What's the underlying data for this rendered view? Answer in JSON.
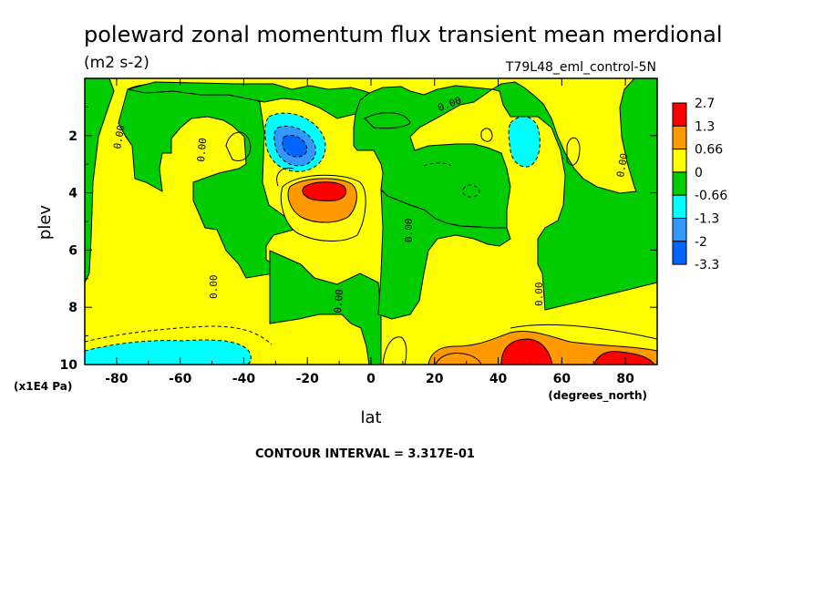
{
  "chart_data": {
    "type": "heatmap",
    "title": "poleward zonal momentum flux transient mean merdional",
    "units": "(m2 s-2)",
    "subtitle": "T79L48_eml_control-5N",
    "xlabel": "lat",
    "xunits": "(degrees_north)",
    "ylabel": "plev",
    "yunits": "(x1E4 Pa)",
    "xlim": [
      -90,
      90
    ],
    "ylim": [
      10,
      0
    ],
    "xticks": [
      "-80",
      "-60",
      "-40",
      "-20",
      "0",
      "20",
      "40",
      "60",
      "80"
    ],
    "yticks": [
      "2",
      "4",
      "6",
      "8",
      "10"
    ],
    "colorbar": {
      "labels": [
        "2.7",
        "1.3",
        "0.66",
        "0",
        "-0.66",
        "-1.3",
        "-2",
        "-3.3"
      ],
      "colors": [
        "#ff0000",
        "#ff9900",
        "#ffff00",
        "#00cc00",
        "#00ffff",
        "#3399ff",
        "#0066ff"
      ]
    },
    "contour_label": "0.00",
    "contour_interval": "CONTOUR INTERVAL = 3.317E-01"
  }
}
